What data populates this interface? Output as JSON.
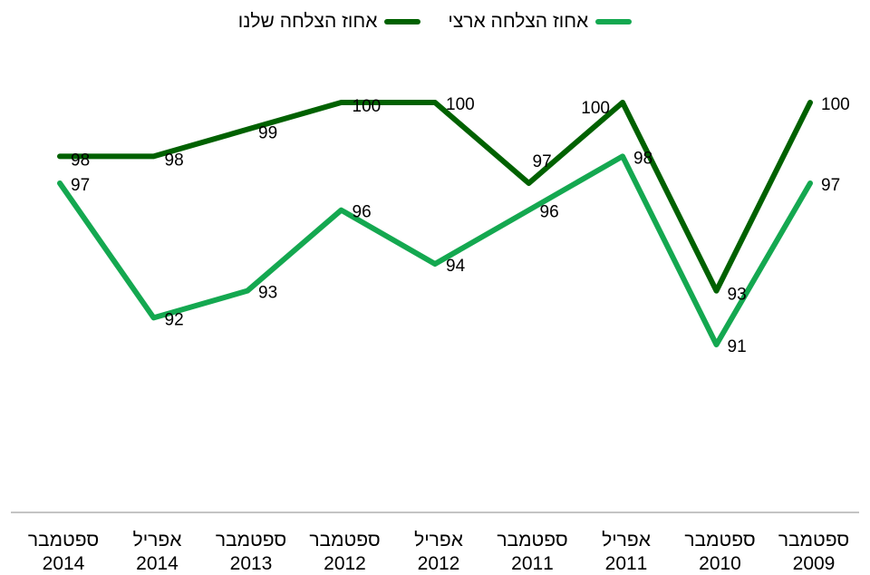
{
  "chart_data": {
    "type": "line",
    "categories": [
      [
        "ספטמבר",
        "2014"
      ],
      [
        "אפריל",
        "2014"
      ],
      [
        "ספטמבר",
        "2013"
      ],
      [
        "ספטמבר",
        "2012"
      ],
      [
        "אפריל",
        "2012"
      ],
      [
        "ספטמבר",
        "2011"
      ],
      [
        "אפריל",
        "2011"
      ],
      [
        "ספטמבר",
        "2010"
      ],
      [
        "ספטמבר",
        "2009"
      ]
    ],
    "series": [
      {
        "name": "אחוז הצלחה שלנו",
        "color": "#006100",
        "values": [
          98,
          98,
          99,
          100,
          100,
          97,
          100,
          93,
          100
        ]
      },
      {
        "name": "אחוז הצלחה ארצי",
        "color": "#14A850",
        "values": [
          97,
          92,
          93,
          96,
          94,
          96,
          98,
          91,
          97
        ]
      }
    ],
    "data_labels": true,
    "ylim": [
      85,
      102
    ],
    "y_axis_visible": false,
    "grid": false,
    "legend": "top"
  }
}
